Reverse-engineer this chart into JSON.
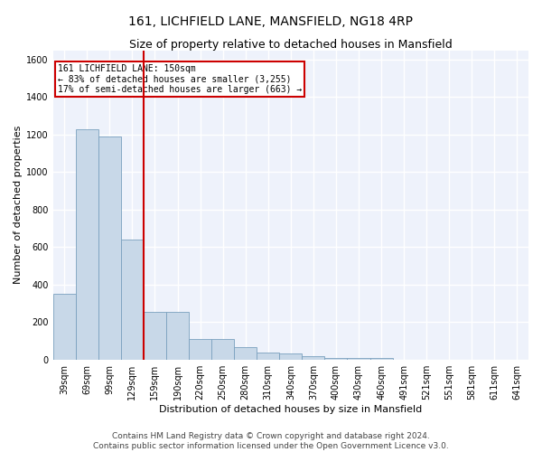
{
  "title": "161, LICHFIELD LANE, MANSFIELD, NG18 4RP",
  "subtitle": "Size of property relative to detached houses in Mansfield",
  "xlabel": "Distribution of detached houses by size in Mansfield",
  "ylabel": "Number of detached properties",
  "categories": [
    "39sqm",
    "69sqm",
    "99sqm",
    "129sqm",
    "159sqm",
    "190sqm",
    "220sqm",
    "250sqm",
    "280sqm",
    "310sqm",
    "340sqm",
    "370sqm",
    "400sqm",
    "430sqm",
    "460sqm",
    "491sqm",
    "521sqm",
    "551sqm",
    "581sqm",
    "611sqm",
    "641sqm"
  ],
  "values": [
    350,
    1230,
    1190,
    640,
    255,
    255,
    110,
    110,
    65,
    35,
    30,
    20,
    10,
    10,
    10,
    0,
    0,
    0,
    0,
    0,
    0
  ],
  "bar_color": "#c8d8e8",
  "bar_edge_color": "#7aa0be",
  "annotation_line1": "161 LICHFIELD LANE: 150sqm",
  "annotation_line2": "← 83% of detached houses are smaller (3,255)",
  "annotation_line3": "17% of semi-detached houses are larger (663) →",
  "annotation_box_color": "#ffffff",
  "annotation_box_edge": "#cc0000",
  "vline_color": "#cc0000",
  "ylim": [
    0,
    1650
  ],
  "yticks": [
    0,
    200,
    400,
    600,
    800,
    1000,
    1200,
    1400,
    1600
  ],
  "footer1": "Contains HM Land Registry data © Crown copyright and database right 2024.",
  "footer2": "Contains public sector information licensed under the Open Government Licence v3.0.",
  "background_color": "#eef2fb",
  "grid_color": "#ffffff",
  "title_fontsize": 10,
  "subtitle_fontsize": 9,
  "tick_fontsize": 7,
  "ylabel_fontsize": 8,
  "xlabel_fontsize": 8,
  "footer_fontsize": 6.5
}
